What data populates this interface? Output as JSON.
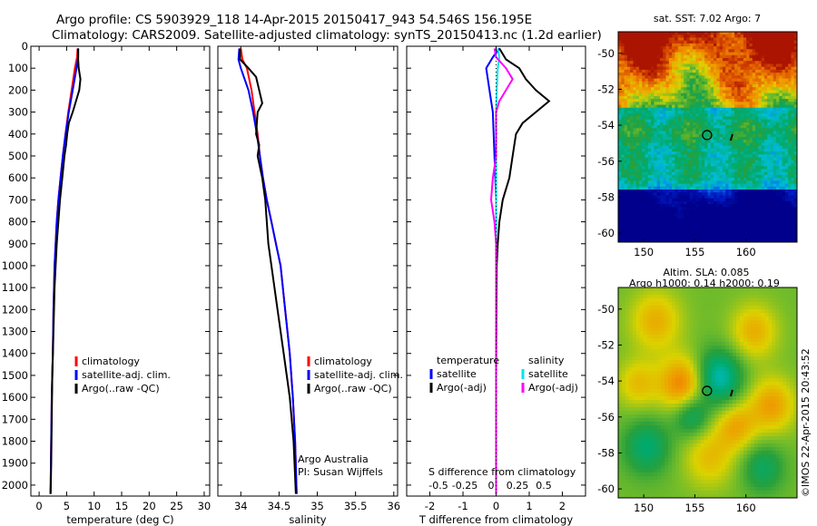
{
  "header": {
    "title_line1": "Argo profile: CS 5903929_118 14-Apr-2015 20150417_943 54.546S 156.195E",
    "title_line2": "Climatology: CARS2009. Satellite-adjusted climatology: synTS_20150413.nc (1.2d earlier)"
  },
  "credit": "Argo Australia",
  "pi": "PI: Susan Wijffels",
  "watermark": "©IMOS 22-Apr-2015 20:43:52",
  "colors": {
    "climatology": "#ff0000",
    "satellite": "#0000ff",
    "argo": "#000000",
    "sal_satellite": "#00e5ee",
    "sal_argo": "#ff00ff"
  },
  "chart_data": [
    {
      "type": "line",
      "xlabel": "temperature (deg C)",
      "xlim": [
        -1.5,
        31
      ],
      "ylim": [
        2050,
        0
      ],
      "xticks": [
        0,
        5,
        10,
        15,
        20,
        25,
        30
      ],
      "yticks": [
        0,
        100,
        200,
        300,
        400,
        500,
        600,
        700,
        800,
        900,
        1000,
        1100,
        1200,
        1300,
        1400,
        1500,
        1600,
        1700,
        1800,
        1900,
        2000
      ],
      "legend": [
        "climatology",
        "satellite-adj. clim.",
        "Argo(..raw -QC)"
      ],
      "legend_position": "lower-right",
      "series": [
        {
          "name": "climatology",
          "color": "#ff0000",
          "points": [
            [
              7.0,
              10
            ],
            [
              6.9,
              50
            ],
            [
              6.5,
              100
            ],
            [
              5.9,
              200
            ],
            [
              5.3,
              300
            ],
            [
              4.8,
              400
            ],
            [
              4.3,
              500
            ],
            [
              3.9,
              600
            ],
            [
              3.5,
              700
            ],
            [
              3.2,
              800
            ],
            [
              3.0,
              900
            ],
            [
              2.8,
              1000
            ],
            [
              2.6,
              1200
            ],
            [
              2.5,
              1400
            ],
            [
              2.3,
              1600
            ],
            [
              2.2,
              1800
            ],
            [
              2.1,
              2000
            ],
            [
              2.05,
              2040
            ]
          ]
        },
        {
          "name": "satellite-adj. clim.",
          "color": "#0000ff",
          "points": [
            [
              7.1,
              10
            ],
            [
              7.1,
              50
            ],
            [
              6.8,
              100
            ],
            [
              6.1,
              200
            ],
            [
              5.4,
              300
            ],
            [
              4.8,
              400
            ],
            [
              4.3,
              500
            ],
            [
              3.9,
              600
            ],
            [
              3.5,
              700
            ],
            [
              3.2,
              800
            ],
            [
              3.0,
              900
            ],
            [
              2.8,
              1000
            ],
            [
              2.6,
              1200
            ],
            [
              2.5,
              1400
            ],
            [
              2.3,
              1600
            ],
            [
              2.2,
              1800
            ],
            [
              2.1,
              2000
            ],
            [
              2.05,
              2040
            ]
          ]
        },
        {
          "name": "Argo(..raw -QC)",
          "color": "#000000",
          "points": [
            [
              7.1,
              10
            ],
            [
              7.1,
              60
            ],
            [
              7.2,
              100
            ],
            [
              7.5,
              150
            ],
            [
              7.3,
              200
            ],
            [
              6.7,
              250
            ],
            [
              6.1,
              300
            ],
            [
              5.4,
              350
            ],
            [
              5.1,
              400
            ],
            [
              4.9,
              450
            ],
            [
              4.6,
              500
            ],
            [
              4.2,
              600
            ],
            [
              3.8,
              700
            ],
            [
              3.5,
              800
            ],
            [
              3.2,
              900
            ],
            [
              3.0,
              1000
            ],
            [
              2.8,
              1100
            ],
            [
              2.6,
              1300
            ],
            [
              2.4,
              1500
            ],
            [
              2.3,
              1700
            ],
            [
              2.2,
              1900
            ],
            [
              2.1,
              2040
            ]
          ]
        }
      ]
    },
    {
      "type": "line",
      "xlabel": "salinity",
      "xlim": [
        33.7,
        36.05
      ],
      "ylim": [
        2050,
        0
      ],
      "xticks": [
        34,
        34.5,
        35,
        35.5,
        36
      ],
      "legend": [
        "climatology",
        "satellite-adj. clim.",
        "Argo(..raw -QC)"
      ],
      "legend_position": "lower-right",
      "series": [
        {
          "name": "climatology",
          "color": "#ff0000",
          "points": [
            [
              34.0,
              10
            ],
            [
              34.02,
              60
            ],
            [
              34.08,
              100
            ],
            [
              34.14,
              200
            ],
            [
              34.18,
              300
            ],
            [
              34.22,
              400
            ],
            [
              34.25,
              500
            ],
            [
              34.29,
              600
            ],
            [
              34.34,
              700
            ],
            [
              34.4,
              800
            ],
            [
              34.46,
              900
            ],
            [
              34.52,
              1000
            ],
            [
              34.58,
              1200
            ],
            [
              34.64,
              1400
            ],
            [
              34.68,
              1600
            ],
            [
              34.71,
              1800
            ],
            [
              34.73,
              2040
            ]
          ]
        },
        {
          "name": "satellite-adj. clim.",
          "color": "#0000ff",
          "points": [
            [
              33.98,
              10
            ],
            [
              33.97,
              60
            ],
            [
              34.0,
              100
            ],
            [
              34.1,
              200
            ],
            [
              34.16,
              300
            ],
            [
              34.21,
              400
            ],
            [
              34.25,
              500
            ],
            [
              34.29,
              600
            ],
            [
              34.34,
              700
            ],
            [
              34.4,
              800
            ],
            [
              34.46,
              900
            ],
            [
              34.52,
              1000
            ],
            [
              34.58,
              1200
            ],
            [
              34.64,
              1400
            ],
            [
              34.68,
              1600
            ],
            [
              34.71,
              1800
            ],
            [
              34.73,
              2040
            ]
          ]
        },
        {
          "name": "Argo(..raw -QC)",
          "color": "#000000",
          "points": [
            [
              33.99,
              10
            ],
            [
              33.99,
              60
            ],
            [
              34.1,
              100
            ],
            [
              34.2,
              140
            ],
            [
              34.24,
              200
            ],
            [
              34.28,
              260
            ],
            [
              34.22,
              300
            ],
            [
              34.2,
              400
            ],
            [
              34.24,
              450
            ],
            [
              34.22,
              500
            ],
            [
              34.28,
              600
            ],
            [
              34.32,
              700
            ],
            [
              34.34,
              800
            ],
            [
              34.36,
              900
            ],
            [
              34.4,
              1000
            ],
            [
              34.48,
              1200
            ],
            [
              34.56,
              1400
            ],
            [
              34.64,
              1600
            ],
            [
              34.69,
              1800
            ],
            [
              34.72,
              2040
            ]
          ]
        }
      ]
    },
    {
      "type": "line",
      "xlabel": "T difference from climatology",
      "xlabel_top": "S difference from climatology",
      "xlim": [
        -2.7,
        2.7
      ],
      "ylim": [
        2050,
        0
      ],
      "xticks": [
        -2,
        -1,
        0,
        1,
        2
      ],
      "xticks_top": [
        "-0.5",
        "-0.25",
        "0",
        "0.25",
        "0.5"
      ],
      "legend": [
        "temperature",
        "satellite",
        "Argo(-adj)",
        "salinity",
        "satellite",
        "Argo(-adj)"
      ],
      "legend_position": "lower-center",
      "series": [
        {
          "name": "satellite",
          "color": "#0000ff",
          "points": [
            [
              0.1,
              10
            ],
            [
              -0.1,
              50
            ],
            [
              -0.3,
              100
            ],
            [
              -0.2,
              200
            ],
            [
              -0.1,
              300
            ],
            [
              -0.05,
              500
            ],
            [
              0,
              700
            ],
            [
              0,
              1000
            ],
            [
              0,
              1500
            ],
            [
              0,
              2040
            ]
          ]
        },
        {
          "name": "Argo(-adj)",
          "color": "#000000",
          "points": [
            [
              0.1,
              10
            ],
            [
              0.3,
              60
            ],
            [
              0.7,
              100
            ],
            [
              0.9,
              150
            ],
            [
              1.2,
              200
            ],
            [
              1.6,
              250
            ],
            [
              1.2,
              300
            ],
            [
              0.8,
              350
            ],
            [
              0.6,
              400
            ],
            [
              0.5,
              500
            ],
            [
              0.4,
              600
            ],
            [
              0.2,
              700
            ],
            [
              0.1,
              800
            ],
            [
              0.05,
              900
            ],
            [
              0.02,
              1000
            ],
            [
              0,
              1500
            ],
            [
              0,
              2040
            ]
          ]
        },
        {
          "name": "satellite",
          "color": "#00e5ee",
          "points": [
            [
              0.05,
              10
            ],
            [
              0.1,
              50
            ],
            [
              0.05,
              100
            ],
            [
              0.02,
              200
            ],
            [
              0,
              300
            ],
            [
              0,
              500
            ],
            [
              0,
              1000
            ],
            [
              0,
              1500
            ],
            [
              0,
              2040
            ]
          ]
        },
        {
          "name": "Argo(-adj)",
          "color": "#ff00ff",
          "points": [
            [
              -0.05,
              10
            ],
            [
              0,
              50
            ],
            [
              0.3,
              100
            ],
            [
              0.5,
              150
            ],
            [
              0.3,
              200
            ],
            [
              0.1,
              250
            ],
            [
              0,
              300
            ],
            [
              0,
              500
            ],
            [
              -0.1,
              600
            ],
            [
              -0.15,
              700
            ],
            [
              -0.05,
              800
            ],
            [
              0,
              900
            ],
            [
              0,
              1000
            ],
            [
              0,
              1500
            ],
            [
              0,
              2040
            ]
          ]
        }
      ]
    },
    {
      "type": "heatmap",
      "title": "sat. SST: 7.02 Argo: 7",
      "xlim": [
        147.5,
        165
      ],
      "ylim": [
        -60.5,
        -48.8
      ],
      "xticks": [
        150,
        155,
        160
      ],
      "yticks": [
        -50,
        -52,
        -54,
        -56,
        -58,
        -60
      ],
      "argo_position": [
        156.195,
        -54.546
      ]
    },
    {
      "type": "heatmap",
      "title_line1": "Altim. SLA: 0.085",
      "title_line2": "Argo h1000: 0.14 h2000: 0.19",
      "xlim": [
        147.5,
        165
      ],
      "ylim": [
        -60.5,
        -48.8
      ],
      "xticks": [
        150,
        155,
        160
      ],
      "yticks": [
        -50,
        -52,
        -54,
        -56,
        -58,
        -60
      ],
      "argo_position": [
        156.195,
        -54.546
      ]
    }
  ]
}
